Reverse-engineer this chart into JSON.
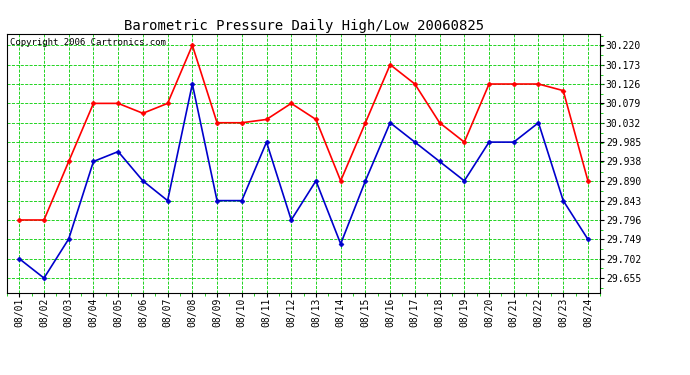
{
  "title": "Barometric Pressure Daily High/Low 20060825",
  "copyright": "Copyright 2006 Cartronics.com",
  "dates": [
    "08/01",
    "08/02",
    "08/03",
    "08/04",
    "08/05",
    "08/06",
    "08/07",
    "08/08",
    "08/09",
    "08/10",
    "08/11",
    "08/12",
    "08/13",
    "08/14",
    "08/15",
    "08/16",
    "08/17",
    "08/18",
    "08/19",
    "08/20",
    "08/21",
    "08/22",
    "08/23",
    "08/24"
  ],
  "high": [
    29.796,
    29.796,
    29.938,
    30.079,
    30.079,
    30.055,
    30.079,
    30.22,
    30.032,
    30.032,
    30.04,
    30.079,
    30.04,
    29.891,
    30.032,
    30.173,
    30.126,
    30.032,
    29.985,
    30.126,
    30.126,
    30.126,
    30.11,
    29.891
  ],
  "low": [
    29.702,
    29.655,
    29.75,
    29.938,
    29.962,
    29.891,
    29.843,
    30.126,
    29.843,
    29.843,
    29.985,
    29.796,
    29.891,
    29.738,
    29.891,
    30.032,
    29.985,
    29.938,
    29.891,
    29.985,
    29.985,
    30.032,
    29.843,
    29.749
  ],
  "high_color": "#ff0000",
  "low_color": "#0000cc",
  "bg_color": "#ffffff",
  "plot_bg_color": "#ffffff",
  "grid_color": "#00cc00",
  "yticks": [
    29.655,
    29.702,
    29.749,
    29.796,
    29.843,
    29.89,
    29.938,
    29.985,
    30.032,
    30.079,
    30.126,
    30.173,
    30.22
  ],
  "ylim": [
    29.62,
    30.248
  ],
  "title_fontsize": 10,
  "copyright_fontsize": 6.5,
  "tick_fontsize": 7,
  "marker": "D",
  "marker_size": 2.5,
  "line_width": 1.2
}
